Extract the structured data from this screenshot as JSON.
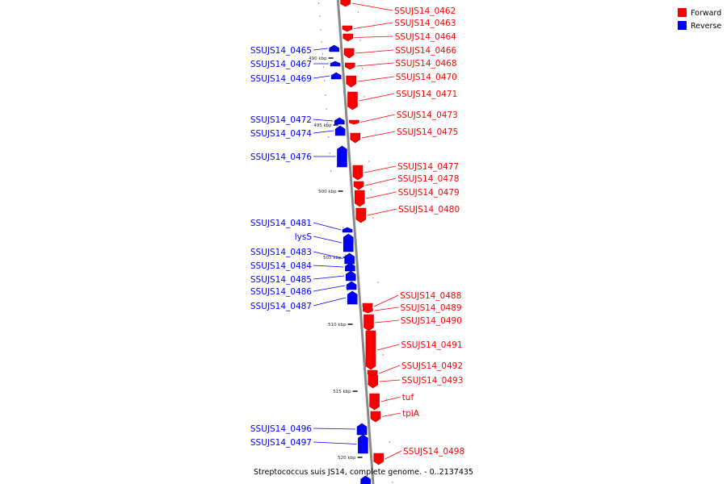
{
  "legend": [
    {
      "label": "Forward",
      "color": "#ff0000"
    },
    {
      "label": "Reverse",
      "color": "#0000ff"
    }
  ],
  "caption": "Streptococcus suis JS14, complete genome. - 0..2137435",
  "ticks": [
    "490 kbp",
    "495 kbp",
    "500 kbp",
    "505 kbp",
    "510 kbp",
    "515 kbp",
    "520 kbp"
  ],
  "forward_genes": [
    "SSUJS14_0462",
    "SSUJS14_0463",
    "SSUJS14_0464",
    "SSUJS14_0466",
    "SSUJS14_0468",
    "SSUJS14_0470",
    "SSUJS14_0471",
    "SSUJS14_0473",
    "SSUJS14_0475",
    "SSUJS14_0477",
    "SSUJS14_0478",
    "SSUJS14_0479",
    "SSUJS14_0480",
    "SSUJS14_0488",
    "SSUJS14_0489",
    "SSUJS14_0490",
    "SSUJS14_0491",
    "SSUJS14_0492",
    "SSUJS14_0493",
    "tuf",
    "tpiA",
    "SSUJS14_0498"
  ],
  "reverse_genes": [
    "SSUJS14_0465",
    "SSUJS14_0467",
    "SSUJS14_0469",
    "SSUJS14_0472",
    "SSUJS14_0474",
    "SSUJS14_0476",
    "SSUJS14_0481",
    "lysS",
    "SSUJS14_0483",
    "SSUJS14_0484",
    "SSUJS14_0485",
    "SSUJS14_0486",
    "SSUJS14_0487",
    "SSUJS14_0496",
    "SSUJS14_0497"
  ]
}
